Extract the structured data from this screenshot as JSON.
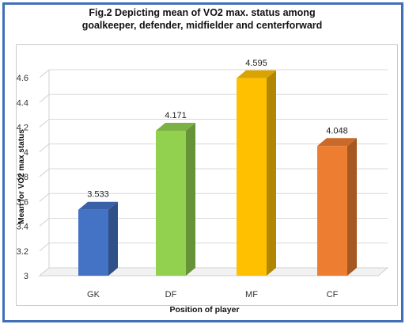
{
  "title": {
    "line1": "Fig.2 Depicting mean of VO2 max. status among",
    "line2": "goalkeeper,  defender,  midfielder   and centerforward"
  },
  "chart_data": {
    "type": "bar",
    "style": "3d",
    "title": "Fig.2 Depicting mean of VO2 max. status among goalkeeper, defender, midfielder and centerforward",
    "xlabel": "Position of player",
    "ylabel": "Mean for VO2 max status",
    "categories": [
      "GK",
      "DF",
      "MF",
      "CF"
    ],
    "values": [
      3.533,
      4.171,
      4.595,
      4.048
    ],
    "data_labels": [
      "3.533",
      "4.171",
      "4.595",
      "4.048"
    ],
    "colors": [
      "#4472c4",
      "#92d050",
      "#ffc000",
      "#ed7d31"
    ],
    "ylim": [
      3,
      4.6
    ],
    "yticks": [
      "3",
      "3.2",
      "3.4",
      "3.6",
      "3.8",
      "4",
      "4.2",
      "4.4",
      "4.6"
    ],
    "grid": true,
    "legend": "none"
  }
}
